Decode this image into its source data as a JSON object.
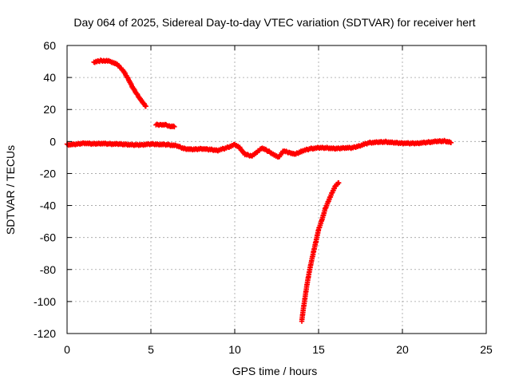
{
  "chart_data": {
    "type": "scatter",
    "title": "Day 064 of 2025, Sidereal Day-to-day VTEC variation (SDTVAR) for receiver hert",
    "xlabel": "GPS time / hours",
    "ylabel": "SDTVAR / TECUs",
    "xlim": [
      0,
      25
    ],
    "ylim": [
      -120,
      60
    ],
    "xticks": [
      0,
      5,
      10,
      15,
      20,
      25
    ],
    "yticks": [
      -120,
      -100,
      -80,
      -60,
      -40,
      -20,
      0,
      20,
      40,
      60
    ],
    "grid": true,
    "legend": "none",
    "marker": "plus",
    "color": "#ff0000",
    "series": [
      {
        "points": [
          [
            0.0,
            -2.0
          ],
          [
            0.5,
            -1.8
          ],
          [
            1.0,
            -1.0
          ],
          [
            1.5,
            -1.5
          ],
          [
            2.0,
            -1.2
          ],
          [
            2.5,
            -1.5
          ],
          [
            3.0,
            -1.6
          ],
          [
            3.5,
            -1.8
          ],
          [
            4.0,
            -2.2
          ],
          [
            4.5,
            -2.0
          ],
          [
            5.0,
            -1.6
          ],
          [
            5.5,
            -1.8
          ],
          [
            6.0,
            -2.0
          ],
          [
            6.5,
            -2.6
          ],
          [
            7.0,
            -4.5
          ],
          [
            7.5,
            -5.0
          ],
          [
            8.0,
            -4.5
          ],
          [
            8.5,
            -5.0
          ],
          [
            9.0,
            -5.5
          ],
          [
            9.5,
            -4.0
          ],
          [
            10.0,
            -2.0
          ],
          [
            10.3,
            -4.0
          ],
          [
            10.6,
            -8.0
          ],
          [
            11.0,
            -9.0
          ],
          [
            11.3,
            -7.0
          ],
          [
            11.6,
            -4.0
          ],
          [
            12.0,
            -6.0
          ],
          [
            12.3,
            -8.0
          ],
          [
            12.6,
            -10.0
          ],
          [
            12.9,
            -6.0
          ],
          [
            13.3,
            -7.0
          ],
          [
            13.6,
            -8.0
          ],
          [
            14.0,
            -6.0
          ],
          [
            14.5,
            -4.5
          ],
          [
            15.0,
            -4.0
          ],
          [
            15.5,
            -4.0
          ],
          [
            16.0,
            -4.5
          ],
          [
            16.5,
            -4.0
          ],
          [
            17.0,
            -4.0
          ],
          [
            17.5,
            -2.5
          ],
          [
            18.0,
            -0.8
          ],
          [
            18.5,
            -0.5
          ],
          [
            19.0,
            -0.2
          ],
          [
            19.5,
            -0.8
          ],
          [
            20.0,
            -1.0
          ],
          [
            20.5,
            -1.2
          ],
          [
            21.0,
            -1.0
          ],
          [
            21.5,
            -0.5
          ],
          [
            22.0,
            0.0
          ],
          [
            22.5,
            0.3
          ],
          [
            22.9,
            -0.5
          ]
        ]
      },
      {
        "points": [
          [
            1.6,
            49.5
          ],
          [
            2.0,
            50.5
          ],
          [
            2.3,
            50.5
          ],
          [
            2.6,
            50.0
          ],
          [
            3.0,
            48.0
          ],
          [
            3.3,
            45.0
          ],
          [
            3.6,
            40.0
          ],
          [
            3.9,
            34.0
          ],
          [
            4.2,
            29.0
          ],
          [
            4.5,
            24.5
          ],
          [
            4.7,
            22.0
          ]
        ]
      },
      {
        "points": [
          [
            5.3,
            10.5
          ],
          [
            5.6,
            10.5
          ],
          [
            5.9,
            10.2
          ],
          [
            6.2,
            9.5
          ],
          [
            6.4,
            9.2
          ]
        ]
      },
      {
        "points": [
          [
            14.0,
            -112.0
          ],
          [
            14.1,
            -104.0
          ],
          [
            14.2,
            -97.0
          ],
          [
            14.3,
            -90.0
          ],
          [
            14.4,
            -84.0
          ],
          [
            14.55,
            -76.0
          ],
          [
            14.7,
            -69.0
          ],
          [
            14.85,
            -62.0
          ],
          [
            15.0,
            -55.0
          ],
          [
            15.2,
            -49.0
          ],
          [
            15.4,
            -42.0
          ],
          [
            15.6,
            -37.0
          ],
          [
            15.8,
            -32.0
          ],
          [
            16.0,
            -28.0
          ],
          [
            16.2,
            -25.5
          ]
        ]
      }
    ]
  }
}
